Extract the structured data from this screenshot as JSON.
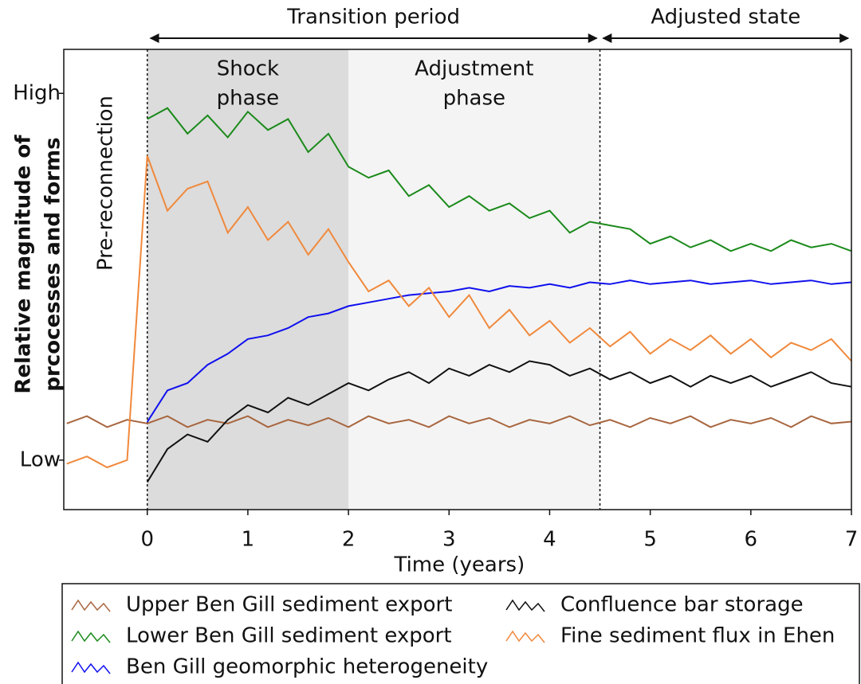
{
  "chart_data": {
    "type": "line",
    "periods": [
      {
        "label": "Transition period",
        "x": [
          0,
          4.5
        ]
      },
      {
        "label": "Adjusted state",
        "x": [
          4.5,
          7
        ]
      }
    ],
    "regions": [
      {
        "lines": [
          "Shock",
          "phase"
        ],
        "x": [
          0,
          2
        ],
        "color": "#dcdcdc"
      },
      {
        "lines": [
          "Adjustment",
          "phase"
        ],
        "x": [
          2,
          4.5
        ],
        "color": "#f4f4f4"
      }
    ],
    "dividers": [
      0,
      4.5
    ],
    "annotation": "Pre-reconnection",
    "x_label": "Time (years)",
    "y_label": [
      "Relative magnitude of",
      "prcocesses and forms"
    ],
    "xlim": [
      -0.83,
      7
    ],
    "ylim": [
      -1.35,
      11.2
    ],
    "xticks": [
      0,
      1,
      2,
      3,
      4,
      5,
      6,
      7
    ],
    "yticks": [
      {
        "value": 10,
        "label": "High"
      },
      {
        "value": 0,
        "label": "Low"
      }
    ],
    "x": [
      -0.8,
      -0.6,
      -0.4,
      -0.2,
      0,
      0.2,
      0.4,
      0.6,
      0.8,
      1.0,
      1.2,
      1.4,
      1.6,
      1.8,
      2.0,
      2.2,
      2.4,
      2.6,
      2.8,
      3.0,
      3.2,
      3.4,
      3.6,
      3.8,
      4.0,
      4.2,
      4.4,
      4.6,
      4.8,
      5.0,
      5.2,
      5.4,
      5.6,
      5.8,
      6.0,
      6.2,
      6.4,
      6.6,
      6.8,
      7.0
    ],
    "series": [
      {
        "name": "Upper Ben Gill sediment export",
        "color": "#a8663f",
        "values": [
          1.0,
          1.2,
          0.9,
          1.1,
          1.0,
          1.2,
          0.9,
          1.1,
          1.0,
          1.2,
          0.9,
          1.1,
          0.95,
          1.15,
          0.9,
          1.2,
          1.0,
          1.1,
          0.9,
          1.2,
          1.0,
          1.15,
          0.9,
          1.1,
          1.0,
          1.2,
          0.95,
          1.1,
          0.9,
          1.15,
          1.0,
          1.2,
          0.9,
          1.1,
          1.0,
          1.15,
          0.9,
          1.2,
          1.0,
          1.05
        ]
      },
      {
        "name": "Lower Ben Gill sediment export",
        "color": "#1b8a1b",
        "values": [
          null,
          null,
          null,
          null,
          9.3,
          9.6,
          8.9,
          9.4,
          8.8,
          9.5,
          9.0,
          9.3,
          8.4,
          8.9,
          8.0,
          7.7,
          7.9,
          7.2,
          7.5,
          6.9,
          7.2,
          6.8,
          7.0,
          6.6,
          6.8,
          6.2,
          6.5,
          6.4,
          6.3,
          5.9,
          6.1,
          5.8,
          6.0,
          5.7,
          5.9,
          5.7,
          6.0,
          5.8,
          5.9,
          5.7
        ]
      },
      {
        "name": "Ben Gill geomorphic heterogeneity",
        "color": "#1010ee",
        "values": [
          null,
          null,
          null,
          null,
          1.04,
          1.9,
          2.1,
          2.6,
          2.9,
          3.3,
          3.4,
          3.6,
          3.9,
          4.0,
          4.2,
          4.3,
          4.4,
          4.5,
          4.55,
          4.6,
          4.7,
          4.6,
          4.75,
          4.7,
          4.8,
          4.7,
          4.85,
          4.8,
          4.9,
          4.8,
          4.85,
          4.9,
          4.8,
          4.85,
          4.9,
          4.8,
          4.85,
          4.9,
          4.8,
          4.85
        ]
      },
      {
        "name": "Confluence bar storage",
        "color": "#111111",
        "values": [
          null,
          null,
          null,
          null,
          -0.6,
          0.3,
          0.7,
          0.5,
          1.1,
          1.5,
          1.3,
          1.7,
          1.5,
          1.8,
          2.1,
          1.9,
          2.2,
          2.4,
          2.1,
          2.5,
          2.3,
          2.6,
          2.4,
          2.7,
          2.6,
          2.3,
          2.5,
          2.2,
          2.4,
          2.1,
          2.3,
          2.0,
          2.3,
          2.1,
          2.3,
          2.0,
          2.2,
          2.4,
          2.1,
          2.0
        ]
      },
      {
        "name": "Fine sediment flux in Ehen",
        "color": "#f0893c",
        "values": [
          -0.1,
          0.1,
          -0.2,
          0.0,
          8.3,
          6.8,
          7.4,
          7.6,
          6.2,
          6.9,
          6.0,
          6.5,
          5.6,
          6.3,
          5.4,
          4.6,
          4.9,
          4.2,
          4.7,
          3.9,
          4.5,
          3.6,
          4.1,
          3.4,
          3.8,
          3.2,
          3.6,
          3.1,
          3.5,
          2.9,
          3.3,
          3.0,
          3.4,
          2.9,
          3.3,
          2.8,
          3.2,
          3.0,
          3.3,
          2.7
        ]
      }
    ]
  }
}
